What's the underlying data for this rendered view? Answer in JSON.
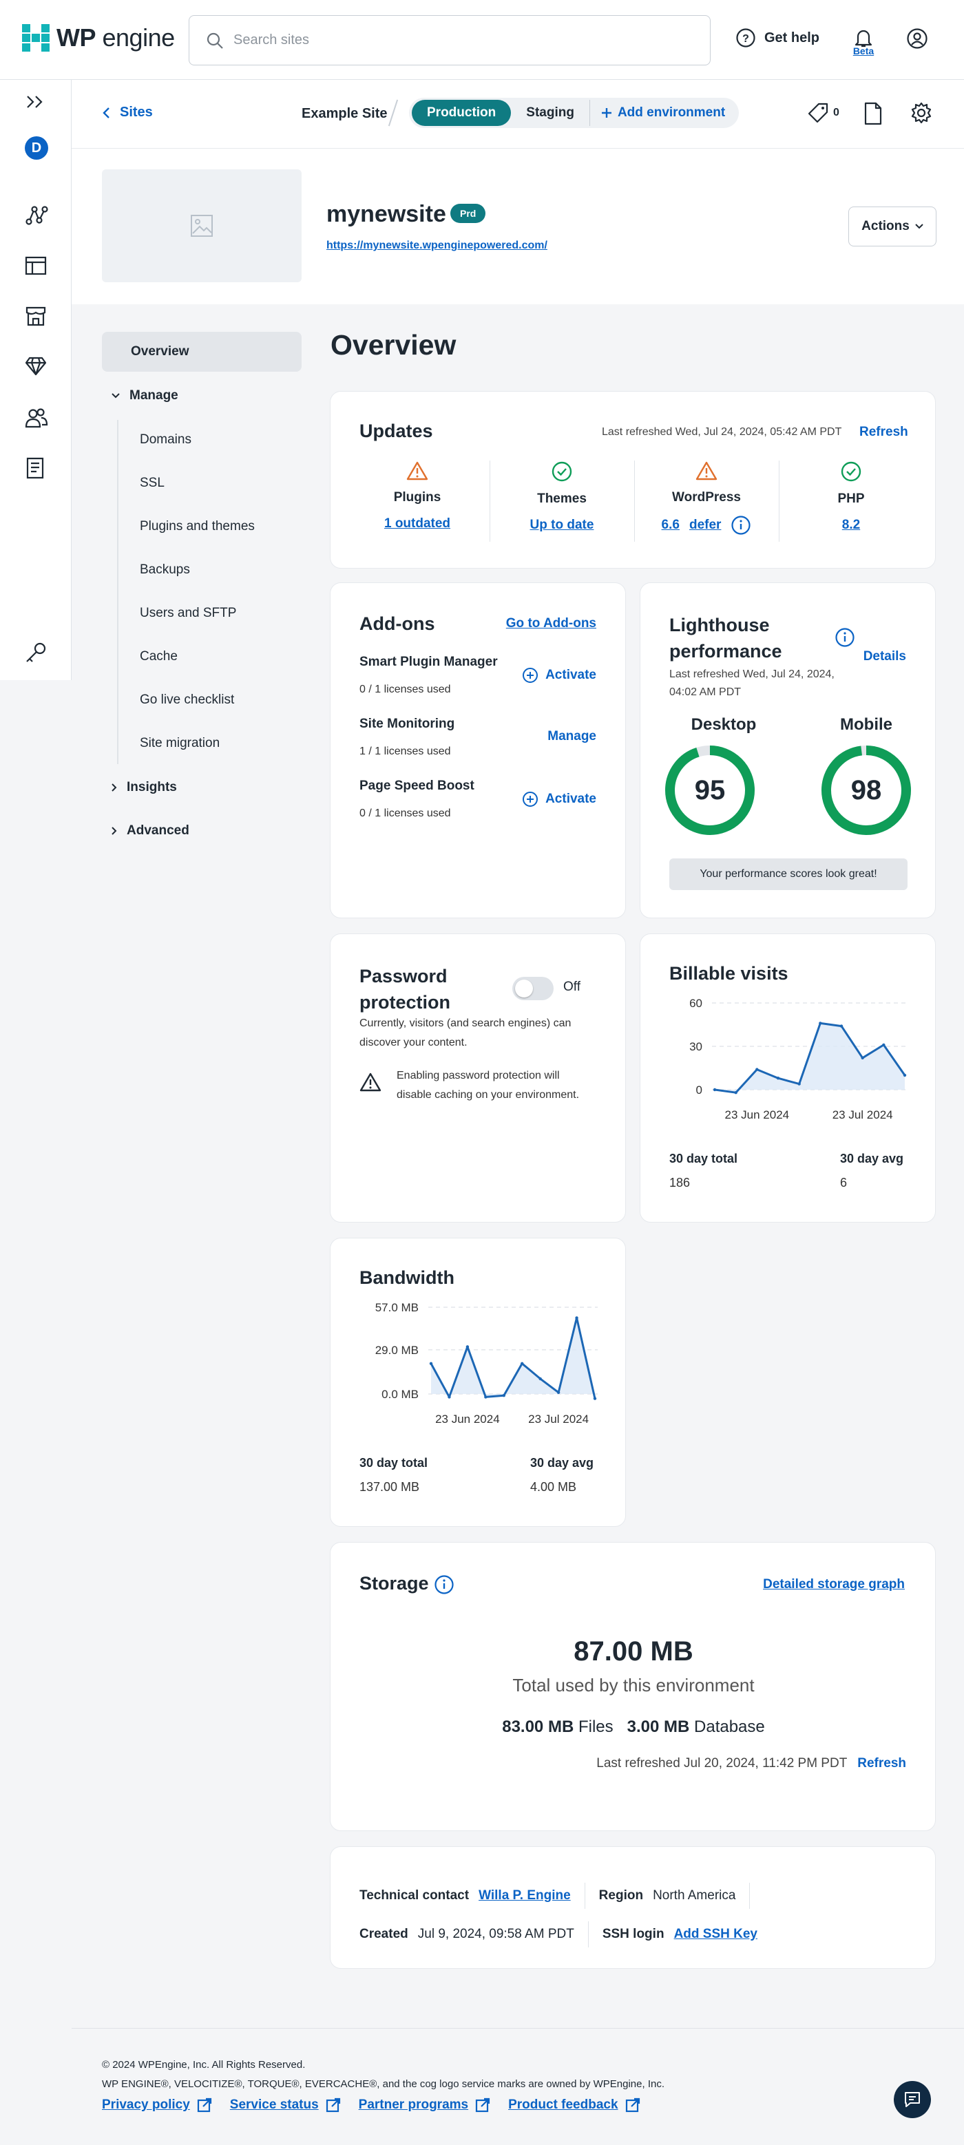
{
  "header": {
    "brand": "engine",
    "brand_bold": "WP",
    "search_placeholder": "Search sites",
    "help_label": "Get help",
    "beta_label": "Beta"
  },
  "subheader": {
    "back_label": "Sites",
    "site": "Example Site",
    "environments": [
      "Production",
      "Staging"
    ],
    "add_environment": "Add environment",
    "tag_count": "0"
  },
  "site": {
    "name": "mynewsite",
    "badge": "Prd",
    "url": "https://mynewsite.wpenginepowered.com/",
    "actions_label": "Actions"
  },
  "nav": {
    "overview": "Overview",
    "manage": "Manage",
    "manage_items": [
      "Domains",
      "SSL",
      "Plugins and themes",
      "Backups",
      "Users and SFTP",
      "Cache",
      "Go live checklist",
      "Site migration"
    ],
    "insights": "Insights",
    "advanced": "Advanced"
  },
  "page_title": "Overview",
  "updates": {
    "title": "Updates",
    "refreshed": "Last refreshed Wed, Jul 24, 2024, 05:42 AM PDT",
    "refresh": "Refresh",
    "items": [
      {
        "name": "Plugins",
        "link": "1 outdated",
        "status": "warning"
      },
      {
        "name": "Themes",
        "link": "Up to date",
        "status": "ok"
      },
      {
        "name": "WordPress",
        "link": "6.6",
        "link2": "defer",
        "status": "warning"
      },
      {
        "name": "PHP",
        "link": "8.2",
        "status": "ok"
      }
    ]
  },
  "addons": {
    "title": "Add-ons",
    "goto": "Go to Add-ons",
    "items": [
      {
        "name": "Smart Plugin Manager",
        "usage": "0 / 1 licenses used",
        "action": "Activate"
      },
      {
        "name": "Site Monitoring",
        "usage": "1 / 1 licenses used",
        "action": "Manage"
      },
      {
        "name": "Page Speed Boost",
        "usage": "0 / 1 licenses used",
        "action": "Activate"
      }
    ]
  },
  "lighthouse": {
    "title_line1": "Lighthouse",
    "title_line2": "performance",
    "details": "Details",
    "refreshed_line1": "Last refreshed Wed, Jul 24, 2024,",
    "refreshed_line2": "04:02 AM PDT",
    "desktop_label": "Desktop",
    "desktop_score": 95,
    "mobile_label": "Mobile",
    "mobile_score": 98,
    "message": "Your performance scores look great!",
    "gauge_color": "#0f9d58"
  },
  "password": {
    "title_line1": "Password",
    "title_line2": "protection",
    "toggle_state": "Off",
    "desc_line1": "Currently, visitors (and search engines) can",
    "desc_line2": "discover your content.",
    "warn_line1": "Enabling password protection will",
    "warn_line2": "disable caching on your environment."
  },
  "billable": {
    "title": "Billable visits",
    "total_label": "30 day total",
    "total": "186",
    "avg_label": "30 day avg",
    "avg": "6"
  },
  "bandwidth": {
    "title": "Bandwidth",
    "total_label": "30 day total",
    "total": "137.00 MB",
    "avg_label": "30 day avg",
    "avg": "4.00 MB"
  },
  "storage": {
    "title": "Storage",
    "graph_link": "Detailed storage graph",
    "total": "87.00 MB",
    "total_caption": "Total used by this environment",
    "files_value": "83.00 MB",
    "files_label": "Files",
    "db_value": "3.00 MB",
    "db_label": "Database",
    "refreshed": "Last refreshed Jul 20, 2024, 11:42 PM PDT",
    "refresh": "Refresh"
  },
  "info": {
    "contact_label": "Technical contact",
    "contact": "Willa P. Engine",
    "region_label": "Region",
    "region": "North America",
    "created_label": "Created",
    "created": "Jul 9, 2024, 09:58 AM PDT",
    "ssh_label": "SSH login",
    "ssh_link": "Add SSH Key"
  },
  "footer": {
    "copyright": "© 2024 WPEngine, Inc. All Rights Reserved.",
    "trademark": "WP ENGINE®, VELOCITIZE®, TORQUE®, EVERCACHE®, and the cog logo service marks are owned by WPEngine, Inc.",
    "links": [
      "Privacy policy",
      "Service status",
      "Partner programs",
      "Product feedback"
    ]
  },
  "chart_data": [
    {
      "type": "area",
      "title": "Billable visits",
      "x_ticks": [
        "23 Jun 2024",
        "23 Jul 2024"
      ],
      "ylim": [
        0,
        60
      ],
      "y_ticks": [
        0,
        30,
        60
      ],
      "series": [
        {
          "values": [
            0,
            -2,
            14,
            8,
            4,
            46,
            44,
            22,
            31,
            10
          ]
        }
      ],
      "grid": "dashed horizontal"
    },
    {
      "type": "area",
      "title": "Bandwidth",
      "x_ticks": [
        "23 Jun 2024",
        "23 Jul 2024"
      ],
      "ylim": [
        0,
        57
      ],
      "y_ticks": [
        "0.0 MB",
        "29.0 MB",
        "57.0 MB"
      ],
      "y_tick_values": [
        0,
        29,
        57
      ],
      "series": [
        {
          "values": [
            20,
            -2,
            31,
            -2,
            -1,
            20,
            10,
            1,
            50,
            -3
          ]
        }
      ],
      "grid": "dashed horizontal"
    }
  ]
}
